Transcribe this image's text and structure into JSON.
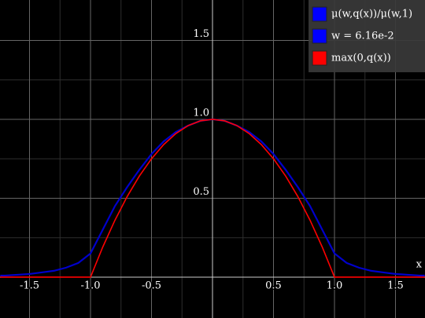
{
  "chart_data": {
    "type": "line",
    "x_label": "x",
    "x": [
      -1.74,
      -1.7,
      -1.6,
      -1.5,
      -1.4,
      -1.3,
      -1.2,
      -1.1,
      -1.0,
      -0.9,
      -0.8,
      -0.7,
      -0.6,
      -0.5,
      -0.4,
      -0.3,
      -0.2,
      -0.1,
      0,
      0.1,
      0.2,
      0.3,
      0.4,
      0.5,
      0.6,
      0.7,
      0.8,
      0.9,
      1.0,
      1.1,
      1.2,
      1.3,
      1.4,
      1.5,
      1.6,
      1.7,
      1.74
    ],
    "series": [
      {
        "name": "μ(w,q(x))/μ(w,1)",
        "color": "#0000cc",
        "values": [
          0.01,
          0.01,
          0.015,
          0.02,
          0.03,
          0.04,
          0.06,
          0.09,
          0.15,
          0.3,
          0.45,
          0.57,
          0.68,
          0.78,
          0.86,
          0.92,
          0.96,
          0.99,
          1.0,
          0.99,
          0.96,
          0.92,
          0.86,
          0.78,
          0.68,
          0.57,
          0.45,
          0.3,
          0.15,
          0.09,
          0.06,
          0.04,
          0.03,
          0.02,
          0.015,
          0.01,
          0.01
        ]
      },
      {
        "name": "max(0,q(x))",
        "color": "#ff0000",
        "values": [
          0,
          0,
          0,
          0,
          0,
          0,
          0,
          0,
          0,
          0.19,
          0.36,
          0.51,
          0.64,
          0.75,
          0.84,
          0.91,
          0.96,
          0.99,
          1.0,
          0.99,
          0.96,
          0.91,
          0.84,
          0.75,
          0.64,
          0.51,
          0.36,
          0.19,
          0,
          0,
          0,
          0,
          0,
          0,
          0,
          0,
          0
        ]
      }
    ],
    "parameter": {
      "label": "w = 6.16e-2",
      "color": "#0000ff"
    },
    "xlim": [
      -1.742,
      1.742
    ],
    "ylim": [
      -0.259,
      1.756
    ],
    "xticks": [
      -1.5,
      {
        "value": -1,
        "label": "-1.0"
      },
      -0.5,
      0.5,
      {
        "value": 1,
        "label": "1.0"
      },
      1.5
    ],
    "yticks": [
      0.5,
      {
        "value": 1,
        "label": "1.0"
      },
      1.5
    ],
    "xminorticks": [
      -1.25,
      -0.75,
      -0.25,
      0.25,
      0.75,
      1.25
    ],
    "yminorticks": [
      0.25,
      0.75,
      1.25
    ],
    "grid": true,
    "legend_position": "top-right"
  }
}
